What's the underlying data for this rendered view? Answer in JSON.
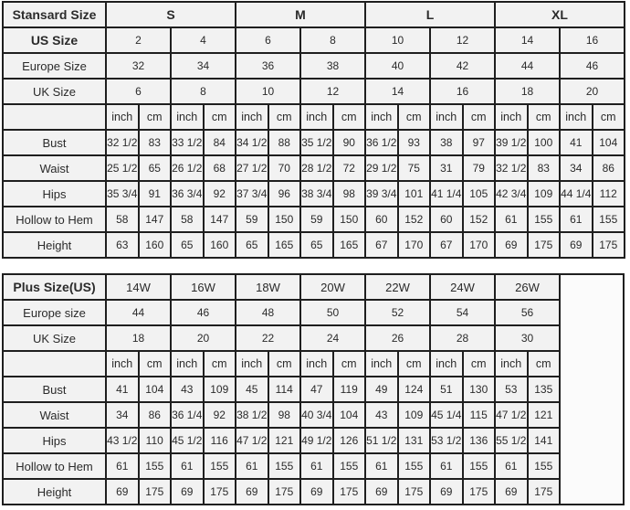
{
  "chart_data": [
    {
      "type": "table",
      "title": "Stansard Size",
      "column_groups": [
        "S",
        "M",
        "L",
        "XL"
      ],
      "groups_bold": true,
      "size_rows": [
        {
          "label": "US Size",
          "bold": true,
          "values": [
            "2",
            "4",
            "6",
            "8",
            "10",
            "12",
            "14",
            "16"
          ]
        },
        {
          "label": "Europe Size",
          "bold": false,
          "values": [
            "32",
            "34",
            "36",
            "38",
            "40",
            "42",
            "44",
            "46"
          ]
        },
        {
          "label": "UK Size",
          "bold": false,
          "values": [
            "6",
            "8",
            "10",
            "12",
            "14",
            "16",
            "18",
            "20"
          ]
        }
      ],
      "unit_row": {
        "label": "",
        "units": [
          "inch",
          "cm"
        ]
      },
      "measure_rows": [
        {
          "label": "Bust",
          "values": [
            "32 1/2",
            "83",
            "33 1/2",
            "84",
            "34 1/2",
            "88",
            "35 1/2",
            "90",
            "36 1/2",
            "93",
            "38",
            "97",
            "39 1/2",
            "100",
            "41",
            "104"
          ]
        },
        {
          "label": "Waist",
          "values": [
            "25 1/2",
            "65",
            "26 1/2",
            "68",
            "27 1/2",
            "70",
            "28 1/2",
            "72",
            "29 1/2",
            "75",
            "31",
            "79",
            "32 1/2",
            "83",
            "34",
            "86"
          ]
        },
        {
          "label": "Hips",
          "values": [
            "35 3/4",
            "91",
            "36 3/4",
            "92",
            "37 3/4",
            "96",
            "38 3/4",
            "98",
            "39 3/4",
            "101",
            "41 1/4",
            "105",
            "42 3/4",
            "109",
            "44 1/4",
            "112"
          ]
        },
        {
          "label": "Hollow to Hem",
          "values": [
            "58",
            "147",
            "58",
            "147",
            "59",
            "150",
            "59",
            "150",
            "60",
            "152",
            "60",
            "152",
            "61",
            "155",
            "61",
            "155"
          ]
        },
        {
          "label": "Height",
          "values": [
            "63",
            "160",
            "65",
            "160",
            "65",
            "165",
            "65",
            "165",
            "67",
            "170",
            "67",
            "170",
            "69",
            "175",
            "69",
            "175"
          ]
        }
      ],
      "trailing_empty_column": false
    },
    {
      "type": "table",
      "title": "Plus Size(US)",
      "column_groups": [
        "14W",
        "16W",
        "18W",
        "20W",
        "22W",
        "24W",
        "26W"
      ],
      "groups_bold": false,
      "size_rows": [
        {
          "label": "Europe size",
          "bold": false,
          "values": [
            "44",
            "46",
            "48",
            "50",
            "52",
            "54",
            "56"
          ]
        },
        {
          "label": "UK Size",
          "bold": false,
          "values": [
            "18",
            "20",
            "22",
            "24",
            "26",
            "28",
            "30"
          ]
        }
      ],
      "unit_row": {
        "label": "",
        "units": [
          "inch",
          "cm"
        ]
      },
      "measure_rows": [
        {
          "label": "Bust",
          "values": [
            "41",
            "104",
            "43",
            "109",
            "45",
            "114",
            "47",
            "119",
            "49",
            "124",
            "51",
            "130",
            "53",
            "135"
          ]
        },
        {
          "label": "Waist",
          "values": [
            "34",
            "86",
            "36 1/4",
            "92",
            "38 1/2",
            "98",
            "40 3/4",
            "104",
            "43",
            "109",
            "45 1/4",
            "115",
            "47 1/2",
            "121"
          ]
        },
        {
          "label": "Hips",
          "values": [
            "43 1/2",
            "110",
            "45 1/2",
            "116",
            "47 1/2",
            "121",
            "49 1/2",
            "126",
            "51 1/2",
            "131",
            "53 1/2",
            "136",
            "55 1/2",
            "141"
          ]
        },
        {
          "label": "Hollow to Hem",
          "values": [
            "61",
            "155",
            "61",
            "155",
            "61",
            "155",
            "61",
            "155",
            "61",
            "155",
            "61",
            "155",
            "61",
            "155"
          ]
        },
        {
          "label": "Height",
          "values": [
            "69",
            "175",
            "69",
            "175",
            "69",
            "175",
            "69",
            "175",
            "69",
            "175",
            "69",
            "175",
            "69",
            "175"
          ]
        }
      ],
      "trailing_empty_column": true
    }
  ],
  "colors": {
    "page_background": "#ffffff",
    "cell_background": "#f2f2f2",
    "border": "#1f1f1f",
    "text": "#2b2b2b"
  }
}
